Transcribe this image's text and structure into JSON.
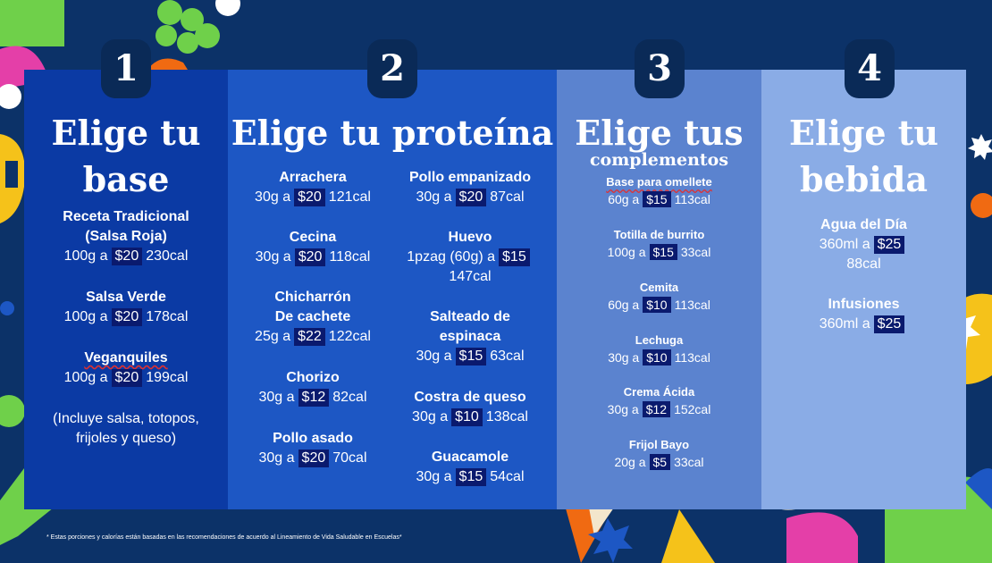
{
  "sections": [
    {
      "number": "1",
      "title_lines": [
        "Elige tu",
        "base"
      ],
      "items": [
        {
          "name_lines": [
            "Receta Tradicional",
            "(Salsa Roja)"
          ],
          "portion": "100g a",
          "price": "$20",
          "cal": "230cal"
        },
        {
          "name_lines": [
            "Salsa Verde"
          ],
          "portion": "100g a",
          "price": "$20",
          "cal": "178cal"
        },
        {
          "name_lines": [
            "Veganquiles"
          ],
          "portion": "100g a",
          "price": "$20",
          "cal": "199cal"
        }
      ],
      "note_lines": [
        "(Incluye salsa, totopos,",
        "frijoles y queso)"
      ]
    },
    {
      "number": "2",
      "title": "Elige tu proteína",
      "items_left": [
        {
          "name_lines": [
            "Arrachera"
          ],
          "portion": "30g a",
          "price": "$20",
          "cal": "121cal"
        },
        {
          "name_lines": [
            "Cecina"
          ],
          "portion": "30g a",
          "price": "$20",
          "cal": "118cal"
        },
        {
          "name_lines": [
            "Chicharrón",
            "De cachete"
          ],
          "portion": "25g a",
          "price": "$22",
          "cal": "122cal"
        },
        {
          "name_lines": [
            "Chorizo"
          ],
          "portion": "30g a",
          "price": "$12",
          "cal": "82cal"
        },
        {
          "name_lines": [
            "Pollo asado"
          ],
          "portion": "30g a",
          "price": "$20",
          "cal": "70cal"
        }
      ],
      "items_right": [
        {
          "name_lines": [
            "Pollo empanizado"
          ],
          "portion": "30g a",
          "price": "$20",
          "cal": "87cal"
        },
        {
          "name_lines": [
            "Huevo"
          ],
          "portion": "1pzag (60g) a",
          "price": "$15",
          "cal": "147cal"
        },
        {
          "name_lines": [
            "Salteado de",
            "espinaca"
          ],
          "portion": "30g a",
          "price": "$15",
          "cal": "63cal"
        },
        {
          "name_lines": [
            "Costra de queso"
          ],
          "portion": "30g a",
          "price": "$10",
          "cal": "138cal"
        },
        {
          "name_lines": [
            "Guacamole"
          ],
          "portion": "30g a",
          "price": "$15",
          "cal": "54cal"
        }
      ]
    },
    {
      "number": "3",
      "title_lines": [
        "Elige tus",
        "complementos"
      ],
      "items": [
        {
          "name_lines": [
            "Base para omellete"
          ],
          "portion": "60g a",
          "price": "$15",
          "cal": "113cal"
        },
        {
          "name_lines": [
            "Totilla de burrito"
          ],
          "portion": "100g a",
          "price": "$15",
          "cal": "33cal"
        },
        {
          "name_lines": [
            "Cemita"
          ],
          "portion": "60g a",
          "price": "$10",
          "cal": "113cal"
        },
        {
          "name_lines": [
            "Lechuga"
          ],
          "portion": "30g a",
          "price": "$10",
          "cal": "113cal"
        },
        {
          "name_lines": [
            "Crema Ácida"
          ],
          "portion": "30g a",
          "price": "$12",
          "cal": "152cal"
        },
        {
          "name_lines": [
            "Frijol Bayo"
          ],
          "portion": "20g a",
          "price": "$5",
          "cal": "33cal"
        }
      ]
    },
    {
      "number": "4",
      "title_lines": [
        "Elige tu",
        "bebida"
      ],
      "items": [
        {
          "name_lines": [
            "Agua del Día"
          ],
          "portion": "360ml a",
          "price": "$25",
          "cal": "88cal"
        },
        {
          "name_lines": [
            "Infusiones"
          ],
          "portion": "360ml a",
          "price": "$25"
        }
      ]
    }
  ],
  "footnote": "* Estas porciones y calorías están basadas en las recomendaciones de acuerdo al Lineamiento de Vida Saludable en Escuelas*",
  "colors": {
    "background": "#0c3268",
    "panel_1": "#0b3aa4",
    "panel_2": "#1d57c4",
    "panel_3": "#5b83cf",
    "panel_4": "#8aace6",
    "price_box": "#0a1a6e",
    "accent_orange": "#f06a12",
    "accent_green": "#6fd04a",
    "accent_pink": "#e43fa8",
    "accent_yellow": "#f5c21a"
  }
}
